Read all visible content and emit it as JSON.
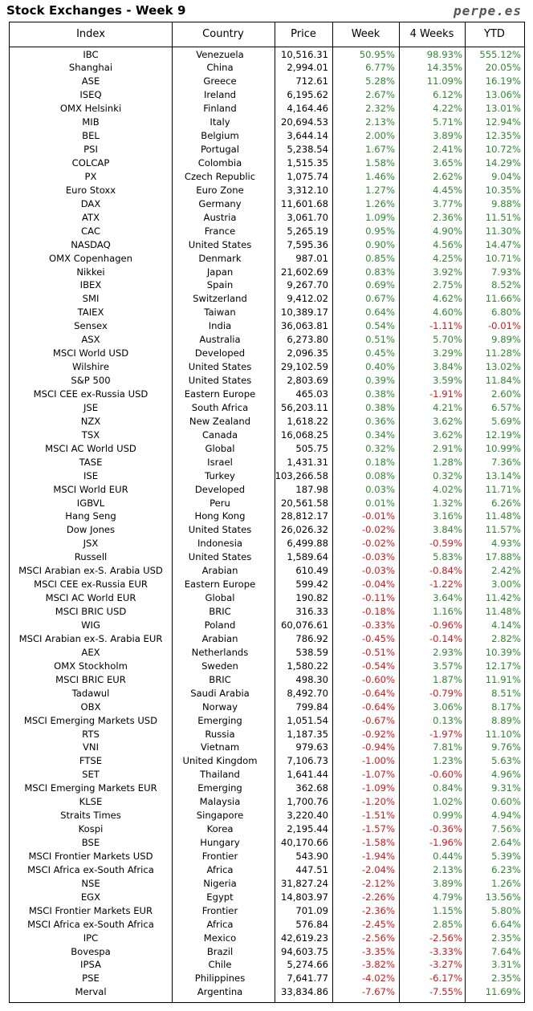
{
  "header": {
    "title": "Stock Exchanges - Week 9",
    "site": "perpe.es"
  },
  "columns": [
    "Index",
    "Country",
    "Price",
    "Week",
    "4 Weeks",
    "YTD"
  ],
  "colors": {
    "positive": "#2f8a2f",
    "negative": "#d11a1a"
  },
  "rows": [
    [
      "IBC",
      "Venezuela",
      "10,516.31",
      "50.95%",
      "98.93%",
      "555.12%"
    ],
    [
      "Shanghai",
      "China",
      "2,994.01",
      "6.77%",
      "14.35%",
      "20.05%"
    ],
    [
      "ASE",
      "Greece",
      "712.61",
      "5.28%",
      "11.09%",
      "16.19%"
    ],
    [
      "ISEQ",
      "Ireland",
      "6,195.62",
      "2.67%",
      "6.12%",
      "13.06%"
    ],
    [
      "OMX Helsinki",
      "Finland",
      "4,164.46",
      "2.32%",
      "4.22%",
      "13.01%"
    ],
    [
      "MIB",
      "Italy",
      "20,694.53",
      "2.13%",
      "5.71%",
      "12.94%"
    ],
    [
      "BEL",
      "Belgium",
      "3,644.14",
      "2.00%",
      "3.89%",
      "12.35%"
    ],
    [
      "PSI",
      "Portugal",
      "5,238.54",
      "1.67%",
      "2.41%",
      "10.72%"
    ],
    [
      "COLCAP",
      "Colombia",
      "1,515.35",
      "1.58%",
      "3.65%",
      "14.29%"
    ],
    [
      "PX",
      "Czech Republic",
      "1,075.74",
      "1.46%",
      "2.62%",
      "9.04%"
    ],
    [
      "Euro Stoxx",
      "Euro Zone",
      "3,312.10",
      "1.27%",
      "4.45%",
      "10.35%"
    ],
    [
      "DAX",
      "Germany",
      "11,601.68",
      "1.26%",
      "3.77%",
      "9.88%"
    ],
    [
      "ATX",
      "Austria",
      "3,061.70",
      "1.09%",
      "2.36%",
      "11.51%"
    ],
    [
      "CAC",
      "France",
      "5,265.19",
      "0.95%",
      "4.90%",
      "11.30%"
    ],
    [
      "NASDAQ",
      "United States",
      "7,595.36",
      "0.90%",
      "4.56%",
      "14.47%"
    ],
    [
      "OMX Copenhagen",
      "Denmark",
      "987.01",
      "0.85%",
      "4.25%",
      "10.71%"
    ],
    [
      "Nikkei",
      "Japan",
      "21,602.69",
      "0.83%",
      "3.92%",
      "7.93%"
    ],
    [
      "IBEX",
      "Spain",
      "9,267.70",
      "0.69%",
      "2.75%",
      "8.52%"
    ],
    [
      "SMI",
      "Switzerland",
      "9,412.02",
      "0.67%",
      "4.62%",
      "11.66%"
    ],
    [
      "TAIEX",
      "Taiwan",
      "10,389.17",
      "0.64%",
      "4.60%",
      "6.80%"
    ],
    [
      "Sensex",
      "India",
      "36,063.81",
      "0.54%",
      "-1.11%",
      "-0.01%"
    ],
    [
      "ASX",
      "Australia",
      "6,273.80",
      "0.51%",
      "5.70%",
      "9.89%"
    ],
    [
      "MSCI World USD",
      "Developed",
      "2,096.35",
      "0.45%",
      "3.29%",
      "11.28%"
    ],
    [
      "Wilshire",
      "United States",
      "29,102.59",
      "0.40%",
      "3.84%",
      "13.02%"
    ],
    [
      "S&P 500",
      "United States",
      "2,803.69",
      "0.39%",
      "3.59%",
      "11.84%"
    ],
    [
      "MSCI CEE ex-Russia USD",
      "Eastern Europe",
      "465.03",
      "0.38%",
      "-1.91%",
      "2.60%"
    ],
    [
      "JSE",
      "South Africa",
      "56,203.11",
      "0.38%",
      "4.21%",
      "6.57%"
    ],
    [
      "NZX",
      "New Zealand",
      "1,618.22",
      "0.36%",
      "3.62%",
      "5.69%"
    ],
    [
      "TSX",
      "Canada",
      "16,068.25",
      "0.34%",
      "3.62%",
      "12.19%"
    ],
    [
      "MSCI AC World USD",
      "Global",
      "505.75",
      "0.32%",
      "2.91%",
      "10.99%"
    ],
    [
      "TASE",
      "Israel",
      "1,431.31",
      "0.18%",
      "1.28%",
      "7.36%"
    ],
    [
      "ISE",
      "Turkey",
      "103,266.58",
      "0.08%",
      "0.32%",
      "13.14%"
    ],
    [
      "MSCI World EUR",
      "Developed",
      "187.98",
      "0.03%",
      "4.02%",
      "11.71%"
    ],
    [
      "IGBVL",
      "Peru",
      "20,561.58",
      "0.01%",
      "1.32%",
      "6.26%"
    ],
    [
      "Hang Seng",
      "Hong Kong",
      "28,812.17",
      "-0.01%",
      "3.16%",
      "11.48%"
    ],
    [
      "Dow Jones",
      "United States",
      "26,026.32",
      "-0.02%",
      "3.84%",
      "11.57%"
    ],
    [
      "JSX",
      "Indonesia",
      "6,499.88",
      "-0.02%",
      "-0.59%",
      "4.93%"
    ],
    [
      "Russell",
      "United States",
      "1,589.64",
      "-0.03%",
      "5.83%",
      "17.88%"
    ],
    [
      "MSCI Arabian ex-S. Arabia USD",
      "Arabian",
      "610.49",
      "-0.03%",
      "-0.84%",
      "2.42%"
    ],
    [
      "MSCI CEE ex-Russia EUR",
      "Eastern Europe",
      "599.42",
      "-0.04%",
      "-1.22%",
      "3.00%"
    ],
    [
      "MSCI AC World EUR",
      "Global",
      "190.82",
      "-0.11%",
      "3.64%",
      "11.42%"
    ],
    [
      "MSCI BRIC USD",
      "BRIC",
      "316.33",
      "-0.18%",
      "1.16%",
      "11.48%"
    ],
    [
      "WIG",
      "Poland",
      "60,076.61",
      "-0.33%",
      "-0.96%",
      "4.14%"
    ],
    [
      "MSCI Arabian ex-S. Arabia EUR",
      "Arabian",
      "786.92",
      "-0.45%",
      "-0.14%",
      "2.82%"
    ],
    [
      "AEX",
      "Netherlands",
      "538.59",
      "-0.51%",
      "2.93%",
      "10.39%"
    ],
    [
      "OMX Stockholm",
      "Sweden",
      "1,580.22",
      "-0.54%",
      "3.57%",
      "12.17%"
    ],
    [
      "MSCI BRIC EUR",
      "BRIC",
      "498.30",
      "-0.60%",
      "1.87%",
      "11.91%"
    ],
    [
      "Tadawul",
      "Saudi Arabia",
      "8,492.70",
      "-0.64%",
      "-0.79%",
      "8.51%"
    ],
    [
      "OBX",
      "Norway",
      "799.84",
      "-0.64%",
      "3.06%",
      "8.17%"
    ],
    [
      "MSCI Emerging Markets USD",
      "Emerging",
      "1,051.54",
      "-0.67%",
      "0.13%",
      "8.89%"
    ],
    [
      "RTS",
      "Russia",
      "1,187.35",
      "-0.92%",
      "-1.97%",
      "11.10%"
    ],
    [
      "VNI",
      "Vietnam",
      "979.63",
      "-0.94%",
      "7.81%",
      "9.76%"
    ],
    [
      "FTSE",
      "United Kingdom",
      "7,106.73",
      "-1.00%",
      "1.23%",
      "5.63%"
    ],
    [
      "SET",
      "Thailand",
      "1,641.44",
      "-1.07%",
      "-0.60%",
      "4.96%"
    ],
    [
      "MSCI Emerging Markets EUR",
      "Emerging",
      "362.68",
      "-1.09%",
      "0.84%",
      "9.31%"
    ],
    [
      "KLSE",
      "Malaysia",
      "1,700.76",
      "-1.20%",
      "1.02%",
      "0.60%"
    ],
    [
      "Straits Times",
      "Singapore",
      "3,220.40",
      "-1.51%",
      "0.99%",
      "4.94%"
    ],
    [
      "Kospi",
      "Korea",
      "2,195.44",
      "-1.57%",
      "-0.36%",
      "7.56%"
    ],
    [
      "BSE",
      "Hungary",
      "40,170.66",
      "-1.58%",
      "-1.96%",
      "2.64%"
    ],
    [
      "MSCI Frontier Markets USD",
      "Frontier",
      "543.90",
      "-1.94%",
      "0.44%",
      "5.39%"
    ],
    [
      "MSCI Africa ex-South Africa",
      "Africa",
      "447.51",
      "-2.04%",
      "2.13%",
      "6.23%"
    ],
    [
      "NSE",
      "Nigeria",
      "31,827.24",
      "-2.12%",
      "3.89%",
      "1.26%"
    ],
    [
      "EGX",
      "Egypt",
      "14,803.97",
      "-2.26%",
      "4.79%",
      "13.56%"
    ],
    [
      "MSCI Frontier Markets EUR",
      "Frontier",
      "701.09",
      "-2.36%",
      "1.15%",
      "5.80%"
    ],
    [
      "MSCI Africa ex-South Africa",
      "Africa",
      "576.84",
      "-2.45%",
      "2.85%",
      "6.64%"
    ],
    [
      "IPC",
      "Mexico",
      "42,619.23",
      "-2.56%",
      "-2.56%",
      "2.35%"
    ],
    [
      "Bovespa",
      "Brazil",
      "94,603.75",
      "-3.35%",
      "-3.33%",
      "7.64%"
    ],
    [
      "IPSA",
      "Chile",
      "5,274.66",
      "-3.82%",
      "-3.27%",
      "3.31%"
    ],
    [
      "PSE",
      "Philippines",
      "7,641.77",
      "-4.02%",
      "-6.17%",
      "2.35%"
    ],
    [
      "Merval",
      "Argentina",
      "33,834.86",
      "-7.67%",
      "-7.55%",
      "11.69%"
    ]
  ]
}
